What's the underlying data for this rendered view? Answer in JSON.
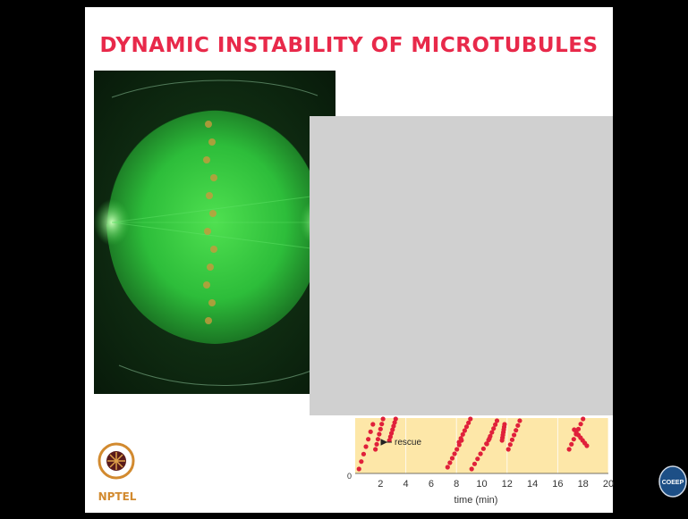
{
  "slide": {
    "title": "DYNAMIC INSTABILITY OF MICROTUBULES"
  },
  "colors": {
    "title": "#e8294a",
    "plot_background": "#fde7a8",
    "plot_points": "#e0203a",
    "micrograph_green": "#2dbd3a"
  },
  "plot": {
    "annotation": "rescue",
    "xlabel": "time (min)",
    "y_tick": "0"
  },
  "chart_data": {
    "type": "scatter",
    "xlabel": "time (min)",
    "x_ticks": [
      "2",
      "4",
      "6",
      "8",
      "10",
      "12",
      "14",
      "16",
      "18",
      "20"
    ],
    "y_ticks": [
      "0"
    ],
    "xlim": [
      0,
      20
    ],
    "annotations": [
      "rescue"
    ]
  },
  "logos": {
    "left_label": "NPTEL",
    "right_label": "COEEP"
  }
}
